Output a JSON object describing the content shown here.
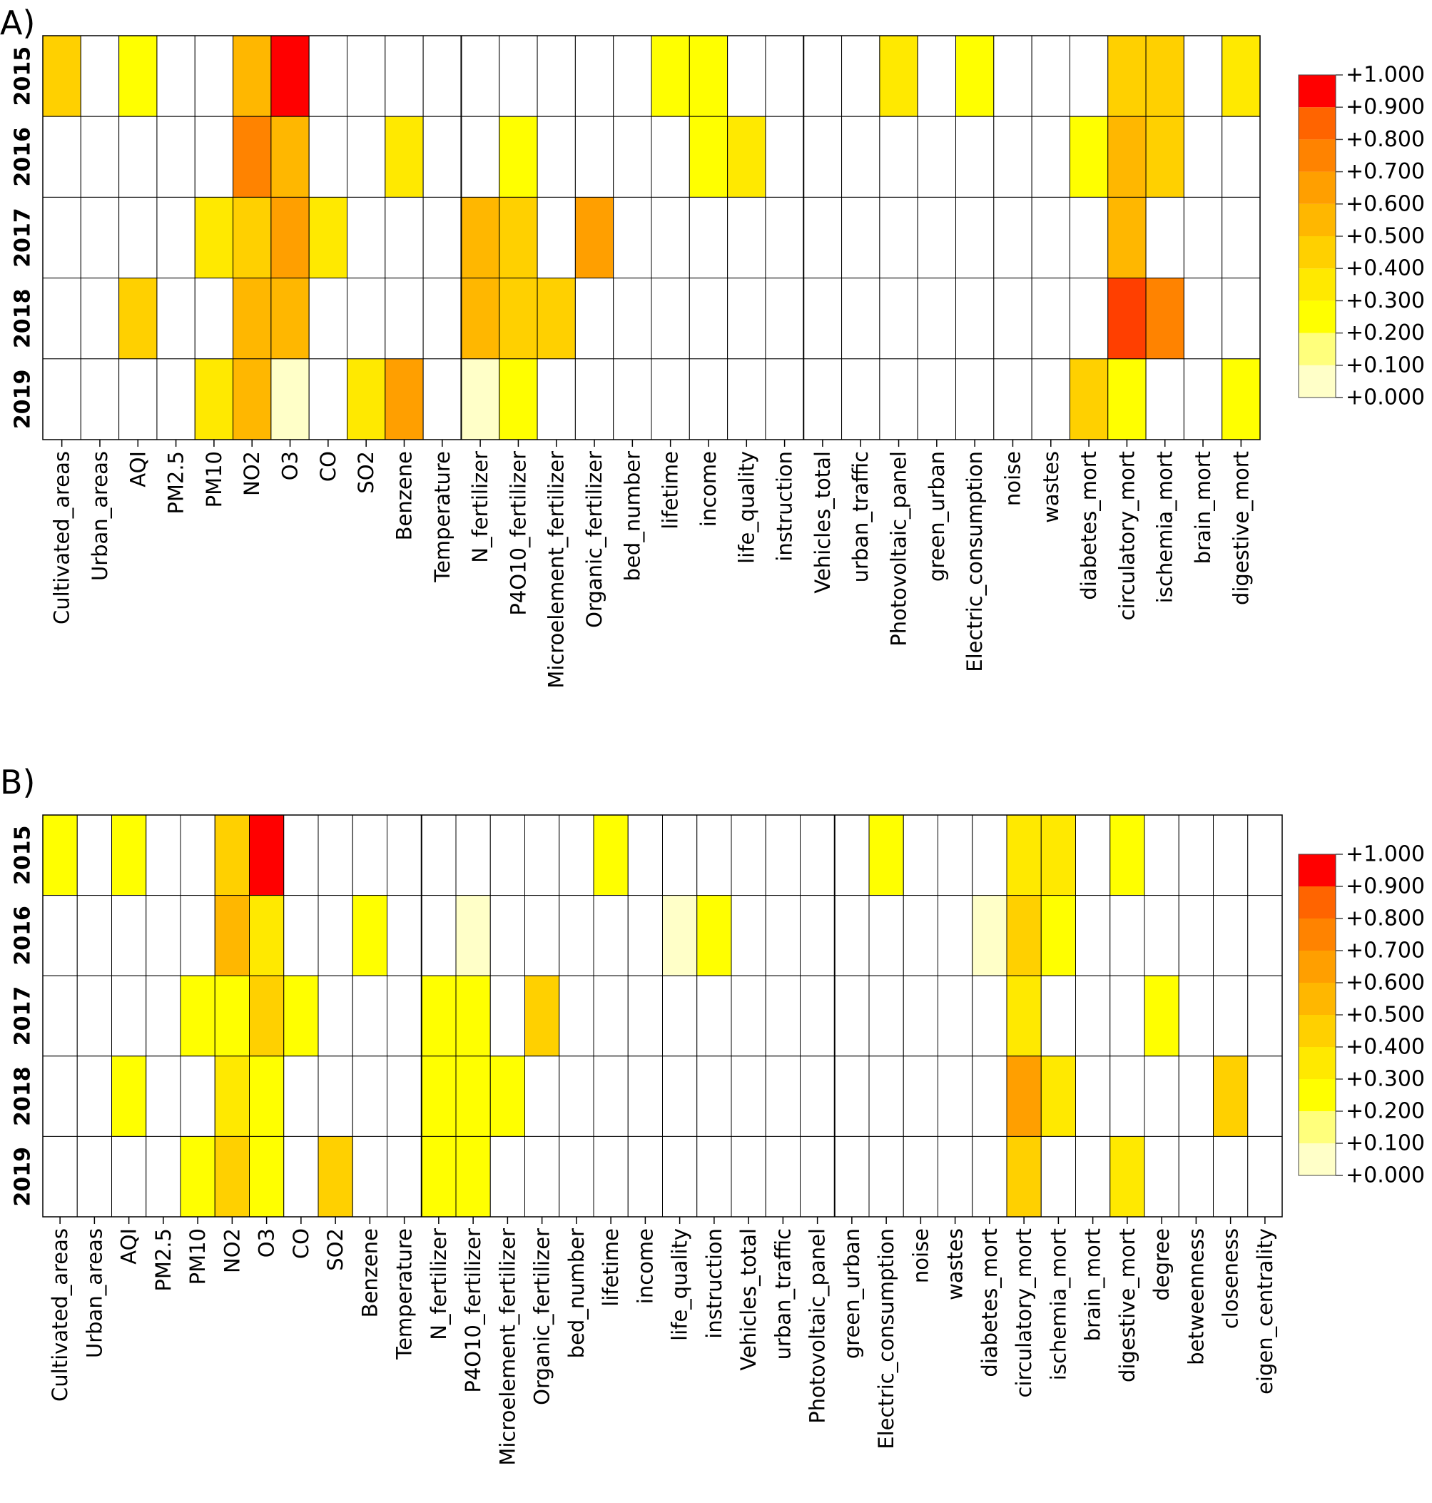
{
  "palette": [
    "#ffffc8",
    "#ffff7c",
    "#ffff00",
    "#ffe900",
    "#ffd000",
    "#ffb700",
    "#ff9f00",
    "#ff8300",
    "#ff6400",
    "#ff3f00",
    "#ff0000"
  ],
  "chart_data": [
    {
      "type": "heatmap",
      "panel_label": "A)",
      "rows": [
        "2015",
        "2016",
        "2017",
        "2018",
        "2019"
      ],
      "columns": [
        "Cultivated_areas",
        "Urban_areas",
        "AQI",
        "PM2.5",
        "PM10",
        "NO2",
        "O3",
        "CO",
        "SO2",
        "Benzene",
        "Temperature",
        "N_fertilizer",
        "P4O10_fertilizer",
        "Microelement_fertilizer",
        "Organic_fertilizer",
        "bed_number",
        "lifetime",
        "income",
        "life_quality",
        "instruction",
        "Vehicles_total",
        "urban_traffic",
        "Photovoltaic_panel",
        "green_urban",
        "Electric_consumption",
        "noise",
        "wastes",
        "diabetes_mort",
        "circulatory_mort",
        "ischemia_mort",
        "brain_mort",
        "digestive_mort"
      ],
      "values": [
        [
          0.45,
          null,
          0.25,
          null,
          null,
          0.55,
          1.0,
          null,
          null,
          null,
          null,
          null,
          null,
          null,
          null,
          null,
          0.25,
          0.2,
          null,
          null,
          null,
          null,
          0.35,
          null,
          0.2,
          null,
          null,
          null,
          0.45,
          0.4,
          null,
          0.35
        ],
        [
          null,
          null,
          null,
          null,
          null,
          0.75,
          0.55,
          null,
          null,
          0.35,
          null,
          null,
          0.2,
          null,
          null,
          null,
          null,
          0.2,
          0.35,
          null,
          null,
          null,
          null,
          null,
          null,
          null,
          null,
          0.25,
          0.55,
          0.4,
          null,
          null
        ],
        [
          null,
          null,
          null,
          null,
          0.35,
          0.45,
          0.65,
          0.35,
          null,
          null,
          null,
          0.55,
          0.45,
          null,
          0.6,
          null,
          null,
          null,
          null,
          null,
          null,
          null,
          null,
          null,
          null,
          null,
          null,
          null,
          0.55,
          null,
          null,
          null
        ],
        [
          null,
          null,
          0.45,
          null,
          null,
          0.55,
          0.55,
          null,
          null,
          null,
          null,
          0.55,
          0.45,
          0.45,
          null,
          null,
          null,
          null,
          null,
          null,
          null,
          null,
          null,
          null,
          null,
          null,
          null,
          null,
          0.95,
          0.7,
          null,
          null
        ],
        [
          null,
          null,
          null,
          null,
          0.35,
          0.55,
          0.05,
          null,
          0.35,
          0.6,
          null,
          0.05,
          0.25,
          null,
          null,
          null,
          null,
          null,
          null,
          null,
          null,
          null,
          null,
          null,
          null,
          null,
          null,
          0.45,
          0.2,
          null,
          null,
          0.25
        ]
      ],
      "legend_ticks": [
        "+1.000",
        "+0.900",
        "+0.800",
        "+0.700",
        "+0.600",
        "+0.500",
        "+0.400",
        "+0.300",
        "+0.200",
        "+0.100",
        "+0.000"
      ],
      "zlim": [
        0,
        1
      ]
    },
    {
      "type": "heatmap",
      "panel_label": "B)",
      "rows": [
        "2015",
        "2016",
        "2017",
        "2018",
        "2019"
      ],
      "columns": [
        "Cultivated_areas",
        "Urban_areas",
        "AQI",
        "PM2.5",
        "PM10",
        "NO2",
        "O3",
        "CO",
        "SO2",
        "Benzene",
        "Temperature",
        "N_fertilizer",
        "P4O10_fertilizer",
        "Microelement_fertilizer",
        "Organic_fertilizer",
        "bed_number",
        "lifetime",
        "income",
        "life_quality",
        "instruction",
        "Vehicles_total",
        "urban_traffic",
        "Photovoltaic_panel",
        "green_urban",
        "Electric_consumption",
        "noise",
        "wastes",
        "diabetes_mort",
        "circulatory_mort",
        "ischemia_mort",
        "brain_mort",
        "digestive_mort",
        "degree",
        "betweenness",
        "closeness",
        "eigen_centrality"
      ],
      "values": [
        [
          0.25,
          null,
          0.25,
          null,
          null,
          0.45,
          1.0,
          null,
          null,
          null,
          null,
          null,
          null,
          null,
          null,
          null,
          0.2,
          null,
          null,
          null,
          null,
          null,
          null,
          null,
          0.2,
          null,
          null,
          null,
          0.35,
          0.35,
          null,
          0.25,
          null,
          null,
          null,
          null
        ],
        [
          null,
          null,
          null,
          null,
          null,
          0.55,
          0.35,
          null,
          null,
          0.2,
          null,
          null,
          0.05,
          null,
          null,
          null,
          null,
          null,
          0.05,
          0.2,
          null,
          null,
          null,
          null,
          null,
          null,
          null,
          0.05,
          0.45,
          0.2,
          null,
          null,
          null,
          null,
          null,
          null
        ],
        [
          null,
          null,
          null,
          null,
          0.2,
          0.25,
          0.45,
          0.2,
          null,
          null,
          null,
          0.25,
          0.25,
          null,
          0.4,
          null,
          null,
          null,
          null,
          null,
          null,
          null,
          null,
          null,
          null,
          null,
          null,
          null,
          0.35,
          null,
          null,
          null,
          0.2,
          null,
          null,
          null
        ],
        [
          null,
          null,
          0.25,
          null,
          null,
          0.35,
          0.2,
          null,
          null,
          null,
          null,
          0.2,
          0.2,
          0.2,
          null,
          null,
          null,
          null,
          null,
          null,
          null,
          null,
          null,
          null,
          null,
          null,
          null,
          null,
          0.6,
          0.35,
          null,
          null,
          null,
          null,
          0.45,
          null
        ],
        [
          null,
          null,
          null,
          null,
          0.25,
          0.45,
          0.25,
          null,
          0.4,
          null,
          null,
          0.25,
          0.2,
          null,
          null,
          null,
          null,
          null,
          null,
          null,
          null,
          null,
          null,
          null,
          null,
          null,
          null,
          null,
          0.45,
          null,
          null,
          0.35,
          null,
          null,
          null,
          null
        ]
      ],
      "legend_ticks": [
        "+1.000",
        "+0.900",
        "+0.800",
        "+0.700",
        "+0.600",
        "+0.500",
        "+0.400",
        "+0.300",
        "+0.200",
        "+0.100",
        "+0.000"
      ],
      "zlim": [
        0,
        1
      ]
    }
  ]
}
